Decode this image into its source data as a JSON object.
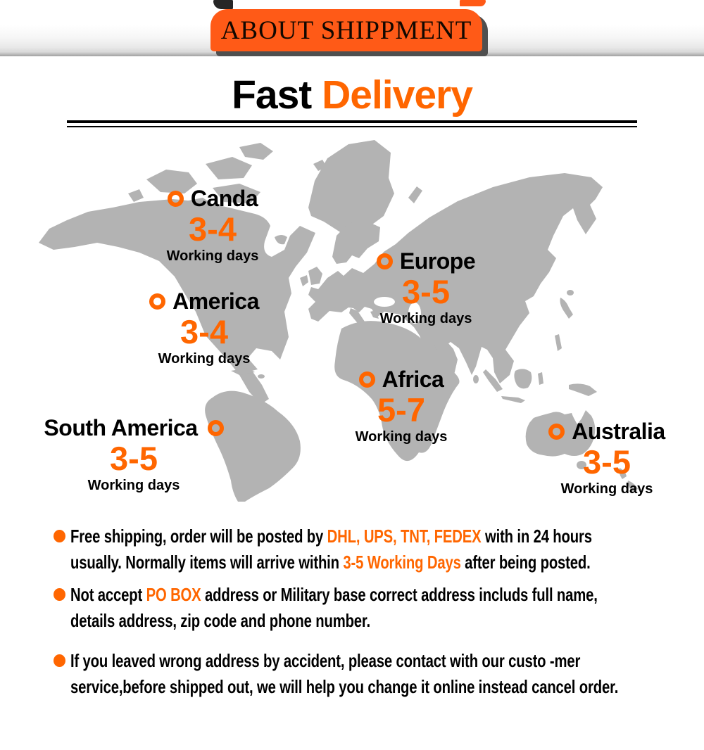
{
  "banner": {
    "title": "ABOUT SHIPPMENT"
  },
  "heading": {
    "word_black": "Fast",
    "word_orange": "Delivery"
  },
  "map": {
    "regions": [
      {
        "id": "canada",
        "name": "Canda",
        "days": "3-4",
        "unit": "Working days",
        "marker": "before"
      },
      {
        "id": "america",
        "name": "America",
        "days": "3-4",
        "unit": "Working days",
        "marker": "before"
      },
      {
        "id": "europe",
        "name": "Europe",
        "days": "3-5",
        "unit": "Working days",
        "marker": "before"
      },
      {
        "id": "africa",
        "name": "Africa",
        "days": "5-7",
        "unit": "Working days",
        "marker": "before"
      },
      {
        "id": "south-america",
        "name": "South America",
        "days": "3-5",
        "unit": "Working days",
        "marker": "after"
      },
      {
        "id": "australia",
        "name": "Australia",
        "days": "3-5",
        "unit": "Working days",
        "marker": "before"
      }
    ]
  },
  "notes": [
    {
      "segments": [
        {
          "text": "Free shipping, order will be posted by "
        },
        {
          "text": "DHL, UPS, TNT, FEDEX",
          "highlight": true
        },
        {
          "text": " with in 24 hours usually. Normally items will arrive within "
        },
        {
          "text": "3-5 Working Days",
          "highlight": true
        },
        {
          "text": " after being posted."
        }
      ]
    },
    {
      "segments": [
        {
          "text": "Not accept "
        },
        {
          "text": "PO BOX",
          "highlight": true
        },
        {
          "text": " address or Military base correct address includs full name, details address, zip code and phone number."
        }
      ]
    },
    {
      "segments": [
        {
          "text": "If you leaved wrong address by accident, please contact with our custo -mer service,before shipped out, we will help you change it online instead cancel order."
        }
      ]
    }
  ],
  "colors": {
    "accent": "#ff6600",
    "banner_orange": "#ff5a17",
    "map_gray": "#b3b3b3",
    "banner_shadow": "#4f4f4f"
  }
}
